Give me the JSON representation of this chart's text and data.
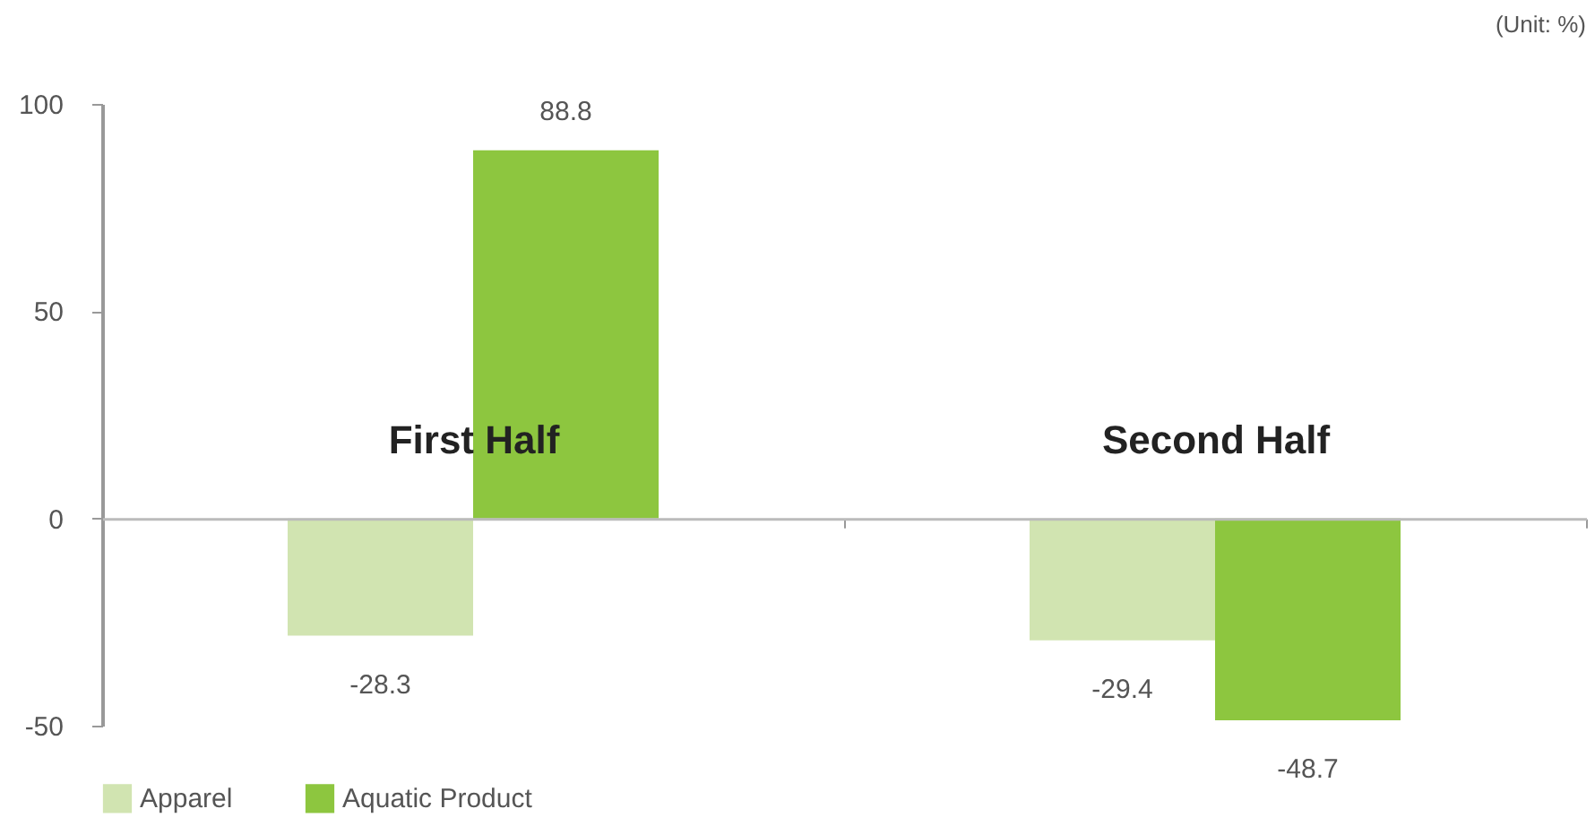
{
  "chart_data": {
    "type": "bar",
    "annotations": [
      "(Unit: %)"
    ],
    "categories": [
      "First Half",
      "Second Half"
    ],
    "series": [
      {
        "name": "Apparel",
        "color": "#d1e4b1",
        "values": [
          -28.3,
          -29.4
        ]
      },
      {
        "name": "Aquatic Product",
        "color": "#8dc63f",
        "values": [
          88.8,
          -48.7
        ]
      }
    ],
    "ylim": [
      -50,
      100
    ],
    "yticks": [
      -50,
      0,
      50,
      100
    ],
    "data_labels": true,
    "legend": "bottom"
  }
}
